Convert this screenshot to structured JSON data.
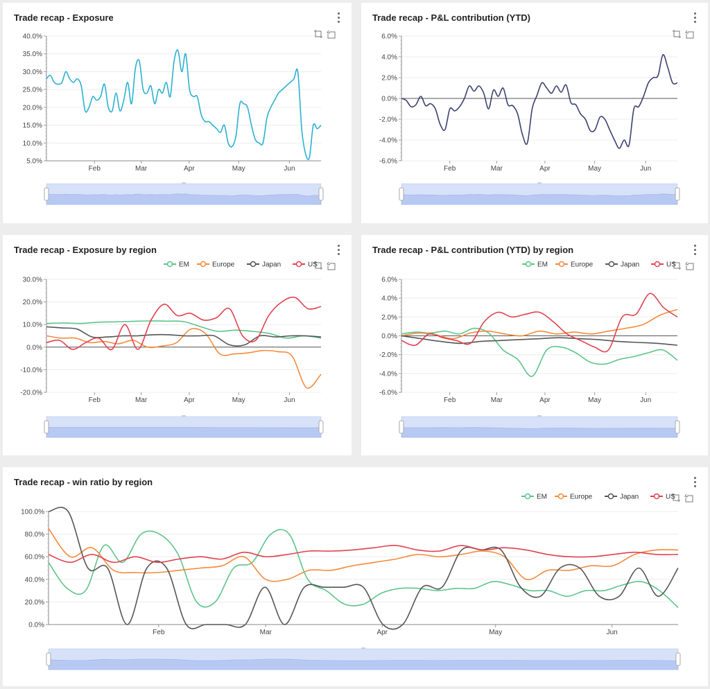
{
  "cards": [
    {
      "id": "c1",
      "title": "Trade recap - Exposure"
    },
    {
      "id": "c2",
      "title": "Trade recap - P&L contribution (YTD)"
    },
    {
      "id": "c3",
      "title": "Trade recap - Exposure by region"
    },
    {
      "id": "c4",
      "title": "Trade recap - P&L contribution (YTD) by region"
    },
    {
      "id": "c5",
      "title": "Trade recap - win ratio by region"
    }
  ],
  "colors": {
    "EM": "#5cc48a",
    "Europe": "#f58a3b",
    "Japan": "#555555",
    "US": "#e0404e",
    "exposure": "#2ab0d0",
    "pnl": "#3a4070",
    "slider": "#d9e4fb"
  },
  "legend": [
    "EM",
    "Europe",
    "Japan",
    "US"
  ],
  "chart_data": [
    {
      "id": "exposure",
      "type": "line",
      "title": "Trade recap - Exposure",
      "x_ticks": [
        "Feb",
        "Mar",
        "Apr",
        "May",
        "Jun"
      ],
      "y_ticks": [
        "40.0%",
        "35.0%",
        "30.0%",
        "25.0%",
        "20.0%",
        "15.0%",
        "10.0%",
        "5.0%"
      ],
      "ylim": [
        5,
        40
      ],
      "series": [
        {
          "values": [
            28,
            29,
            27,
            26.5,
            27,
            30,
            28,
            27,
            28,
            26,
            19,
            20,
            23,
            22,
            23,
            26.5,
            20,
            19,
            24,
            19,
            22,
            27,
            21,
            31,
            33,
            25,
            24,
            26,
            21,
            25,
            24,
            27,
            23,
            33,
            36,
            30,
            35,
            25,
            23,
            23,
            18,
            16,
            16,
            15,
            14,
            13,
            15,
            10,
            9,
            12,
            21,
            21,
            20,
            15,
            11,
            10,
            10,
            17,
            20,
            22,
            24,
            25,
            26,
            27,
            28,
            30,
            14,
            7,
            6,
            15,
            14,
            15
          ]
        }
      ]
    },
    {
      "id": "pnl",
      "type": "line",
      "title": "Trade recap - P&L contribution (YTD)",
      "x_ticks": [
        "Feb",
        "Mar",
        "Apr",
        "May",
        "Jun"
      ],
      "y_ticks": [
        "6.0%",
        "4.0%",
        "2.0%",
        "0.0%",
        "-2.0%",
        "-4.0%",
        "-6.0%"
      ],
      "ylim": [
        -6,
        6
      ],
      "series": [
        {
          "values": [
            0,
            -0.2,
            -0.8,
            -0.6,
            0.2,
            -0.7,
            -0.5,
            -1,
            -2.5,
            -3,
            -1,
            -1.2,
            -0.8,
            0,
            1.2,
            0.7,
            1.2,
            0.5,
            -1,
            0.8,
            0.2,
            1,
            -0.6,
            -0.7,
            -1.5,
            -3.5,
            -4.3,
            -1,
            0.3,
            1.5,
            1,
            0.5,
            1.2,
            0.6,
            1.3,
            -0.4,
            -0.6,
            -1.5,
            -2,
            -3.1,
            -3,
            -1.8,
            -2,
            -3,
            -4,
            -4.8,
            -4,
            -4.5,
            -1,
            -0.8,
            0.2,
            1.5,
            2,
            2.2,
            4.2,
            3,
            1.5,
            1.5
          ]
        }
      ]
    },
    {
      "id": "exposure_region",
      "type": "line",
      "title": "Trade recap - Exposure by region",
      "x_ticks": [
        "Feb",
        "Mar",
        "Apr",
        "May",
        "Jun"
      ],
      "y_ticks": [
        "30.0%",
        "20.0%",
        "10.0%",
        "0.0%",
        "-10.0%",
        "-20.0%"
      ],
      "ylim": [
        -20,
        30
      ],
      "series": [
        {
          "name": "EM",
          "values": [
            10.5,
            10.7,
            10.5,
            11,
            11.2,
            11.4,
            11.6,
            11.5,
            11.3,
            9,
            7,
            7.5,
            7,
            6,
            4,
            5,
            4
          ]
        },
        {
          "name": "Europe",
          "values": [
            5,
            4,
            4,
            2,
            2.5,
            1.5,
            3,
            0,
            0.5,
            2,
            8,
            6,
            -3,
            -3,
            -2.5,
            -1.5,
            -2,
            -4,
            -18,
            -12
          ]
        },
        {
          "name": "Japan",
          "values": [
            9,
            8.5,
            8,
            4.5,
            4.5,
            5,
            5,
            5.5,
            5.5,
            5,
            5,
            5,
            1,
            1,
            5,
            4.5,
            5,
            5,
            4.5
          ]
        },
        {
          "name": "US",
          "values": [
            2,
            3,
            -1,
            2,
            4,
            -1,
            10,
            -1,
            12,
            19,
            14,
            15,
            12,
            13,
            17,
            5,
            3,
            14,
            20,
            22,
            17,
            18
          ]
        }
      ]
    },
    {
      "id": "pnl_region",
      "type": "line",
      "title": "Trade recap - P&L contribution (YTD) by region",
      "x_ticks": [
        "Feb",
        "Mar",
        "Apr",
        "May",
        "Jun"
      ],
      "y_ticks": [
        "6.0%",
        "4.0%",
        "2.0%",
        "0.0%",
        "-2.0%",
        "-4.0%",
        "-6.0%"
      ],
      "ylim": [
        -6,
        6
      ],
      "series": [
        {
          "name": "EM",
          "values": [
            0.2,
            0.4,
            0.3,
            0.5,
            0.2,
            0.8,
            0.3,
            -1.5,
            -2.5,
            -4.3,
            -1.5,
            -1.2,
            -1.8,
            -2.8,
            -3,
            -2.5,
            -2.2,
            -1.8,
            -1.5,
            -2.6
          ]
        },
        {
          "name": "Europe",
          "values": [
            0,
            0.3,
            0.1,
            -0.3,
            0.3,
            0.5,
            0.2,
            0,
            0.5,
            0.2,
            0.4,
            0.2,
            0.5,
            0.8,
            1.2,
            2.2,
            2.8
          ]
        },
        {
          "name": "Japan",
          "values": [
            0,
            -0.3,
            -0.6,
            -0.8,
            -0.6,
            -0.5,
            -0.4,
            -0.3,
            -0.2,
            -0.3,
            -0.4,
            -0.6,
            -0.7,
            -0.8,
            -1
          ]
        },
        {
          "name": "US",
          "values": [
            -0.5,
            -1,
            0.2,
            -0.2,
            -0.5,
            -0.8,
            1.5,
            2.5,
            2,
            2.3,
            2.5,
            1.5,
            0.2,
            -0.5,
            -1.2,
            -1.5,
            2,
            2.3,
            4.5,
            3,
            2
          ]
        }
      ]
    },
    {
      "id": "win_ratio",
      "type": "line",
      "title": "Trade recap - win ratio by region",
      "x_ticks": [
        "Feb",
        "Mar",
        "Apr",
        "May",
        "Jun"
      ],
      "y_ticks": [
        "100.0%",
        "80.0%",
        "60.0%",
        "40.0%",
        "20.0%",
        "0.0%"
      ],
      "ylim": [
        0,
        100
      ],
      "series": [
        {
          "name": "EM",
          "values": [
            55,
            32,
            30,
            70,
            55,
            80,
            80,
            62,
            20,
            20,
            50,
            55,
            80,
            80,
            40,
            30,
            18,
            18,
            28,
            32,
            32,
            30,
            32,
            32,
            38,
            35,
            30,
            30,
            25,
            30,
            30,
            35,
            38,
            30,
            15
          ]
        },
        {
          "name": "Europe",
          "values": [
            85,
            60,
            68,
            48,
            46,
            46,
            48,
            50,
            52,
            60,
            40,
            40,
            48,
            48,
            52,
            55,
            58,
            62,
            60,
            62,
            65,
            60,
            40,
            48,
            48,
            52,
            52,
            62,
            66,
            66
          ]
        },
        {
          "name": "Japan",
          "values": [
            100,
            100,
            50,
            50,
            0,
            50,
            50,
            0,
            0,
            0,
            0,
            33,
            0,
            33,
            33,
            33,
            33,
            0,
            0,
            33,
            33,
            66,
            66,
            66,
            33,
            25,
            50,
            50,
            25,
            25,
            50,
            25,
            50
          ]
        },
        {
          "name": "US",
          "values": [
            62,
            55,
            62,
            55,
            60,
            55,
            58,
            60,
            58,
            64,
            60,
            62,
            65,
            65,
            66,
            68,
            70,
            66,
            65,
            70,
            66,
            68,
            66,
            62,
            60,
            60,
            62,
            64,
            62,
            62
          ]
        }
      ]
    }
  ]
}
